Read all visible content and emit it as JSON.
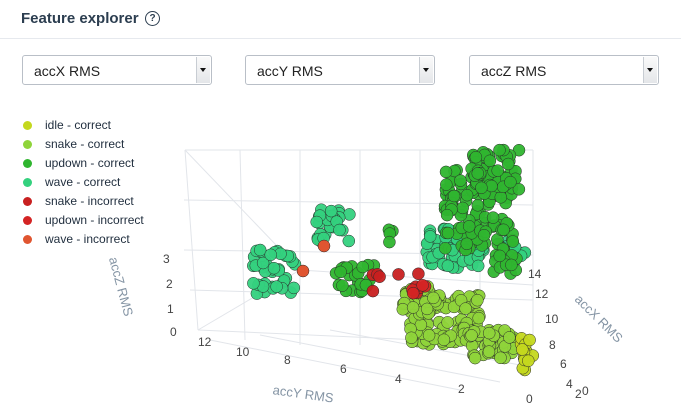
{
  "header": {
    "title": "Feature explorer",
    "help_icon": "help-circle-icon",
    "help_glyph": "?"
  },
  "selectors": {
    "x": "accX RMS",
    "y": "accY RMS",
    "z": "accZ RMS"
  },
  "legend": [
    {
      "label": "idle - correct",
      "color": "#c4d81e"
    },
    {
      "label": "snake - correct",
      "color": "#8fd43a"
    },
    {
      "label": "updown - correct",
      "color": "#2fb52f"
    },
    {
      "label": "wave - correct",
      "color": "#34d17e"
    },
    {
      "label": "snake - incorrect",
      "color": "#c82020"
    },
    {
      "label": "updown - incorrect",
      "color": "#d42424"
    },
    {
      "label": "wave - incorrect",
      "color": "#e05530"
    }
  ],
  "chart_data": {
    "type": "scatter",
    "axes": {
      "z": {
        "label": "accZ RMS",
        "ticks": [
          "0",
          "1",
          "2",
          "3"
        ]
      },
      "y": {
        "label": "accY RMS",
        "ticks": [
          "12",
          "10",
          "8",
          "6",
          "4",
          "2",
          "0"
        ]
      },
      "x": {
        "label": "accX RMS",
        "ticks": [
          "14",
          "12",
          "10",
          "8",
          "6",
          "4",
          "2",
          "0"
        ]
      }
    },
    "series": [
      {
        "name": "idle - correct",
        "points": 14
      },
      {
        "name": "snake - correct",
        "points": 260
      },
      {
        "name": "updown - correct",
        "points": 330
      },
      {
        "name": "wave - correct",
        "points": 300
      },
      {
        "name": "snake - incorrect",
        "points": 9
      },
      {
        "name": "updown - incorrect",
        "points": 4
      },
      {
        "name": "wave - incorrect",
        "points": 2
      }
    ]
  }
}
